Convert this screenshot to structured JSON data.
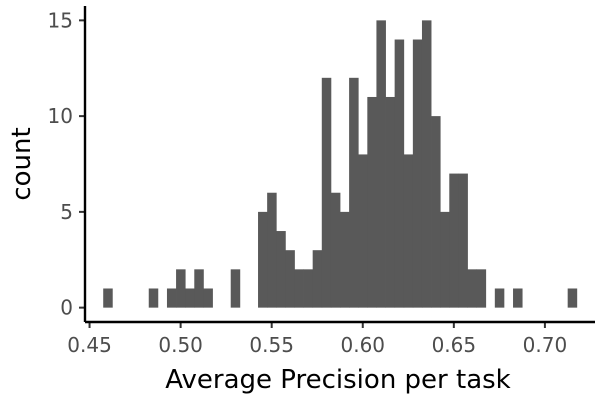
{
  "chart_data": {
    "type": "bar",
    "subtype": "histogram",
    "xlabel": "Average Precision per task",
    "ylabel": "count",
    "bin_width": 0.005,
    "xlim": [
      0.4475,
      0.7275
    ],
    "ylim": [
      -0.75,
      15.75
    ],
    "x_ticks": [
      0.45,
      0.5,
      0.55,
      0.6,
      0.65,
      0.7
    ],
    "x_tick_labels": [
      "0.45",
      "0.50",
      "0.55",
      "0.60",
      "0.65",
      "0.70"
    ],
    "y_ticks": [
      0,
      5,
      10,
      15
    ],
    "y_tick_labels": [
      "0",
      "5",
      "10",
      "15"
    ],
    "bar_color": "#595959",
    "grid": false,
    "bins": [
      {
        "x": 0.46,
        "count": 1
      },
      {
        "x": 0.485,
        "count": 1
      },
      {
        "x": 0.495,
        "count": 1
      },
      {
        "x": 0.5,
        "count": 2
      },
      {
        "x": 0.505,
        "count": 1
      },
      {
        "x": 0.51,
        "count": 2
      },
      {
        "x": 0.515,
        "count": 1
      },
      {
        "x": 0.53,
        "count": 2
      },
      {
        "x": 0.545,
        "count": 5
      },
      {
        "x": 0.55,
        "count": 6
      },
      {
        "x": 0.555,
        "count": 4
      },
      {
        "x": 0.56,
        "count": 3
      },
      {
        "x": 0.565,
        "count": 2
      },
      {
        "x": 0.57,
        "count": 2
      },
      {
        "x": 0.575,
        "count": 3
      },
      {
        "x": 0.58,
        "count": 12
      },
      {
        "x": 0.585,
        "count": 6
      },
      {
        "x": 0.59,
        "count": 5
      },
      {
        "x": 0.595,
        "count": 12
      },
      {
        "x": 0.6,
        "count": 8
      },
      {
        "x": 0.605,
        "count": 11
      },
      {
        "x": 0.61,
        "count": 15
      },
      {
        "x": 0.615,
        "count": 11
      },
      {
        "x": 0.62,
        "count": 14
      },
      {
        "x": 0.625,
        "count": 8
      },
      {
        "x": 0.63,
        "count": 14
      },
      {
        "x": 0.635,
        "count": 15
      },
      {
        "x": 0.64,
        "count": 10
      },
      {
        "x": 0.645,
        "count": 5
      },
      {
        "x": 0.65,
        "count": 7
      },
      {
        "x": 0.655,
        "count": 7
      },
      {
        "x": 0.66,
        "count": 2
      },
      {
        "x": 0.665,
        "count": 2
      },
      {
        "x": 0.675,
        "count": 1
      },
      {
        "x": 0.685,
        "count": 1
      },
      {
        "x": 0.715,
        "count": 1
      }
    ]
  }
}
